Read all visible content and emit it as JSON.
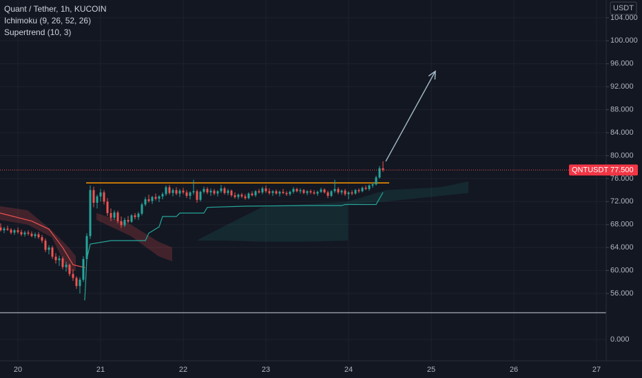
{
  "chart_data": {
    "type": "candlestick",
    "title": "Quant / Tether, 1h, KUCOIN",
    "indicators": [
      "Ichimoku (9, 26, 52, 26)",
      "Supertrend (10, 3)"
    ],
    "currency": "USDT",
    "symbol": "QNTUSDT",
    "last_price": {
      "value": 77.5,
      "label": "77.500"
    },
    "up_color": "#26a69a",
    "down_color": "#ef5350",
    "xlim": [
      -5.2,
      170.8
    ],
    "ylim": [
      52.65,
      107.1
    ],
    "xticks": [
      {
        "value": 0,
        "label": "20"
      },
      {
        "value": 24,
        "label": "21"
      },
      {
        "value": 48,
        "label": "22"
      },
      {
        "value": 72,
        "label": "23"
      },
      {
        "value": 96,
        "label": "24"
      },
      {
        "value": 120,
        "label": "25"
      },
      {
        "value": 144,
        "label": "26"
      },
      {
        "value": 168,
        "label": "27"
      }
    ],
    "yticks": [
      {
        "value": 56,
        "label": "56.000"
      },
      {
        "value": 60,
        "label": "60.000"
      },
      {
        "value": 64,
        "label": "64.000"
      },
      {
        "value": 68,
        "label": "68.000"
      },
      {
        "value": 72,
        "label": "72.000"
      },
      {
        "value": 76,
        "label": "76.000"
      },
      {
        "value": 80,
        "label": "80.000"
      },
      {
        "value": 84,
        "label": "84.000"
      },
      {
        "value": 88,
        "label": "88.000"
      },
      {
        "value": 92,
        "label": "92.000"
      },
      {
        "value": 96,
        "label": "96.000"
      },
      {
        "value": 100,
        "label": "100.000"
      },
      {
        "value": 104,
        "label": "104.000"
      }
    ],
    "pane2": {
      "yticks": [
        {
          "value": 0,
          "label": "0.000"
        }
      ]
    },
    "x": [
      -5,
      -4,
      -3,
      -2,
      -1,
      0,
      1,
      2,
      3,
      4,
      5,
      6,
      7,
      8,
      9,
      10,
      11,
      12,
      13,
      14,
      15,
      16,
      17,
      18,
      19,
      20,
      21,
      22,
      23,
      24,
      25,
      26,
      27,
      28,
      29,
      30,
      31,
      32,
      33,
      34,
      35,
      36,
      37,
      38,
      39,
      40,
      41,
      42,
      43,
      44,
      45,
      46,
      47,
      48,
      49,
      50,
      51,
      52,
      53,
      54,
      55,
      56,
      57,
      58,
      59,
      60,
      61,
      62,
      63,
      64,
      65,
      66,
      67,
      68,
      69,
      70,
      71,
      72,
      73,
      74,
      75,
      76,
      77,
      78,
      79,
      80,
      81,
      82,
      83,
      84,
      85,
      86,
      87,
      88,
      89,
      90,
      91,
      92,
      93,
      94,
      95,
      96,
      97,
      98,
      99,
      100,
      101,
      102,
      103,
      104,
      105,
      106
    ],
    "ohlc": [
      [
        67.5,
        68.2,
        66.8,
        67.0
      ],
      [
        67.0,
        67.6,
        66.5,
        67.3
      ],
      [
        67.3,
        67.8,
        66.9,
        67.1
      ],
      [
        67.1,
        67.4,
        66.3,
        66.6
      ],
      [
        66.6,
        67.2,
        66.2,
        67.0
      ],
      [
        67.0,
        67.5,
        66.4,
        66.7
      ],
      [
        66.7,
        67.1,
        66.0,
        66.3
      ],
      [
        66.3,
        66.9,
        65.9,
        66.6
      ],
      [
        66.6,
        67.0,
        66.1,
        66.4
      ],
      [
        66.4,
        66.8,
        65.8,
        66.0
      ],
      [
        66.0,
        66.6,
        65.6,
        66.3
      ],
      [
        66.3,
        66.7,
        65.5,
        65.8
      ],
      [
        65.8,
        66.2,
        64.8,
        65.2
      ],
      [
        65.2,
        65.6,
        63.2,
        63.6
      ],
      [
        63.6,
        64.4,
        62.8,
        64.0
      ],
      [
        64.0,
        64.3,
        62.0,
        62.4
      ],
      [
        62.4,
        63.0,
        61.2,
        61.8
      ],
      [
        61.8,
        62.6,
        60.8,
        62.1
      ],
      [
        62.1,
        62.4,
        60.2,
        60.6
      ],
      [
        60.6,
        61.5,
        59.8,
        61.0
      ],
      [
        61.0,
        61.2,
        59.0,
        59.4
      ],
      [
        59.4,
        60.2,
        58.2,
        58.7
      ],
      [
        58.7,
        59.0,
        56.8,
        57.3
      ],
      [
        57.3,
        58.8,
        56.0,
        58.4
      ],
      [
        58.4,
        62.5,
        58.0,
        62.0
      ],
      [
        62.0,
        66.5,
        61.5,
        66.0
      ],
      [
        66.0,
        74.8,
        65.5,
        74.0
      ],
      [
        74.0,
        74.6,
        71.0,
        71.8
      ],
      [
        71.8,
        73.2,
        70.8,
        72.9
      ],
      [
        72.9,
        74.2,
        72.0,
        73.6
      ],
      [
        73.6,
        74.0,
        71.5,
        72.0
      ],
      [
        72.0,
        72.6,
        69.5,
        70.0
      ],
      [
        70.0,
        70.8,
        68.6,
        69.2
      ],
      [
        69.2,
        70.5,
        68.8,
        70.1
      ],
      [
        70.1,
        70.4,
        68.2,
        68.6
      ],
      [
        68.6,
        69.4,
        67.4,
        67.9
      ],
      [
        67.9,
        69.2,
        67.6,
        68.8
      ],
      [
        68.8,
        69.5,
        68.2,
        68.5
      ],
      [
        68.5,
        69.8,
        68.3,
        69.6
      ],
      [
        69.6,
        70.0,
        68.9,
        69.3
      ],
      [
        69.3,
        70.2,
        68.8,
        69.9
      ],
      [
        69.9,
        71.8,
        69.6,
        71.5
      ],
      [
        71.5,
        72.8,
        71.2,
        72.4
      ],
      [
        72.4,
        73.2,
        71.8,
        72.1
      ],
      [
        72.1,
        73.0,
        71.6,
        72.8
      ],
      [
        72.8,
        73.4,
        72.2,
        72.5
      ],
      [
        72.5,
        73.1,
        71.9,
        72.9
      ],
      [
        72.9,
        73.6,
        72.4,
        73.3
      ],
      [
        73.3,
        74.8,
        73.0,
        74.5
      ],
      [
        74.5,
        74.9,
        73.2,
        73.5
      ],
      [
        73.5,
        74.3,
        72.9,
        74.0
      ],
      [
        74.0,
        74.5,
        73.1,
        73.4
      ],
      [
        73.4,
        74.2,
        72.8,
        73.9
      ],
      [
        73.9,
        74.4,
        73.3,
        73.6
      ],
      [
        73.6,
        74.0,
        72.6,
        73.0
      ],
      [
        73.0,
        73.8,
        72.4,
        73.6
      ],
      [
        73.6,
        75.8,
        73.2,
        73.8
      ],
      [
        73.8,
        74.1,
        71.8,
        72.3
      ],
      [
        72.3,
        73.9,
        72.0,
        73.7
      ],
      [
        73.7,
        74.6,
        73.4,
        74.2
      ],
      [
        74.2,
        74.5,
        73.3,
        73.6
      ],
      [
        73.6,
        74.3,
        73.0,
        73.9
      ],
      [
        73.9,
        74.2,
        73.1,
        73.4
      ],
      [
        73.4,
        74.0,
        72.9,
        73.8
      ],
      [
        73.8,
        74.9,
        73.5,
        74.3
      ],
      [
        74.3,
        74.6,
        73.2,
        73.5
      ],
      [
        73.5,
        74.2,
        73.1,
        73.9
      ],
      [
        73.9,
        74.1,
        72.8,
        73.1
      ],
      [
        73.1,
        73.6,
        72.5,
        72.8
      ],
      [
        72.8,
        73.4,
        72.4,
        73.2
      ],
      [
        73.2,
        73.5,
        72.6,
        72.9
      ],
      [
        72.9,
        73.3,
        72.3,
        72.6
      ],
      [
        72.6,
        73.6,
        72.4,
        73.4
      ],
      [
        73.4,
        73.8,
        72.9,
        73.1
      ],
      [
        73.1,
        74.0,
        72.8,
        73.8
      ],
      [
        73.8,
        74.2,
        73.4,
        73.6
      ],
      [
        73.6,
        74.6,
        73.3,
        74.3
      ],
      [
        74.3,
        74.8,
        73.5,
        73.8
      ],
      [
        73.8,
        74.3,
        73.2,
        73.5
      ],
      [
        73.5,
        74.0,
        73.0,
        73.8
      ],
      [
        73.8,
        74.1,
        73.2,
        73.4
      ],
      [
        73.4,
        73.9,
        72.9,
        73.7
      ],
      [
        73.7,
        74.2,
        73.3,
        73.5
      ],
      [
        73.5,
        73.8,
        73.0,
        73.3
      ],
      [
        73.3,
        73.9,
        73.0,
        73.7
      ],
      [
        73.7,
        74.5,
        73.4,
        74.2
      ],
      [
        74.2,
        74.4,
        73.6,
        73.8
      ],
      [
        73.8,
        74.3,
        73.4,
        74.0
      ],
      [
        74.0,
        74.2,
        73.3,
        73.5
      ],
      [
        73.5,
        74.0,
        73.1,
        73.8
      ],
      [
        73.8,
        74.1,
        73.3,
        73.6
      ],
      [
        73.6,
        74.0,
        73.2,
        73.4
      ],
      [
        73.4,
        73.9,
        73.0,
        73.7
      ],
      [
        73.7,
        74.4,
        73.5,
        74.1
      ],
      [
        74.1,
        74.3,
        73.4,
        73.6
      ],
      [
        73.6,
        73.9,
        72.6,
        73.0
      ],
      [
        73.0,
        74.0,
        72.8,
        73.8
      ],
      [
        73.8,
        75.8,
        73.5,
        74.2
      ],
      [
        74.2,
        74.5,
        73.3,
        73.6
      ],
      [
        73.6,
        74.1,
        73.2,
        73.9
      ],
      [
        73.9,
        74.2,
        73.0,
        73.3
      ],
      [
        73.3,
        73.8,
        72.4,
        73.6
      ],
      [
        73.6,
        74.0,
        73.1,
        73.4
      ],
      [
        73.4,
        74.2,
        73.2,
        74.0
      ],
      [
        74.0,
        74.3,
        73.5,
        73.8
      ],
      [
        73.8,
        74.6,
        73.6,
        74.4
      ],
      [
        74.4,
        74.8,
        74.0,
        74.2
      ],
      [
        74.2,
        75.0,
        73.9,
        74.8
      ],
      [
        74.8,
        75.3,
        74.4,
        75.0
      ],
      [
        75.0,
        76.5,
        74.8,
        76.2
      ],
      [
        76.2,
        78.2,
        76.0,
        77.8
      ],
      [
        77.8,
        79.0,
        77.2,
        77.5
      ]
    ],
    "supertrend": [
      {
        "color": "#ef5350",
        "x": [
          -5.2,
          4,
          9,
          13,
          16,
          19.5
        ],
        "values": [
          70,
          68.6,
          67.2,
          64,
          61,
          60.5
        ]
      },
      {
        "color": "#26a69a",
        "x": [
          19.4,
          20,
          21,
          27,
          37,
          38,
          41,
          42,
          46,
          47,
          54,
          55,
          66,
          82,
          94,
          95,
          104,
          106
        ],
        "values": [
          54.8,
          62,
          64.6,
          65.2,
          65.2,
          66.5,
          67.6,
          69.4,
          69.4,
          70,
          70,
          71,
          71.2,
          71.3,
          71.3,
          71.5,
          71.5,
          73.6
        ]
      }
    ],
    "clouds": [
      {
        "color": "rgba(239,83,80,0.22)",
        "x": [
          -5.2,
          2.8,
          9.8,
          14.8,
          16.8
        ],
        "upper": [
          71.2,
          70.5,
          67.0,
          64.0,
          62.5
        ],
        "lower": [
          68.8,
          68.0,
          65.8,
          59.8,
          60.0
        ]
      },
      {
        "color": "rgba(239,83,80,0.22)",
        "x": [
          22.8,
          32.8,
          40.8,
          44.8
        ],
        "upper": [
          70,
          68,
          65,
          64
        ],
        "lower": [
          68.8,
          66,
          62.5,
          61.6
        ]
      },
      {
        "color": "rgba(38,166,154,0.13)",
        "x": [
          51.8,
          60.8,
          70.8,
          82.8,
          95.8
        ],
        "upper": [
          65.2,
          68,
          71,
          71.5,
          72
        ],
        "lower": [
          65.2,
          65.2,
          65,
          65,
          65.2
        ]
      },
      {
        "color": "rgba(38,166,154,0.13)",
        "x": [
          95.8,
          106.8,
          122.8,
          130.8
        ],
        "upper": [
          72,
          74,
          74.5,
          75.5
        ],
        "lower": [
          71.5,
          72,
          73,
          73.5
        ]
      }
    ],
    "resistance": {
      "color": "#ff9800",
      "value": 75.25,
      "x": [
        19.8,
        107.8
      ]
    },
    "arrow": {
      "color": "#9fb6c2",
      "x": [
        106.8,
        121.2
      ],
      "y": [
        79,
        94.7
      ]
    }
  }
}
